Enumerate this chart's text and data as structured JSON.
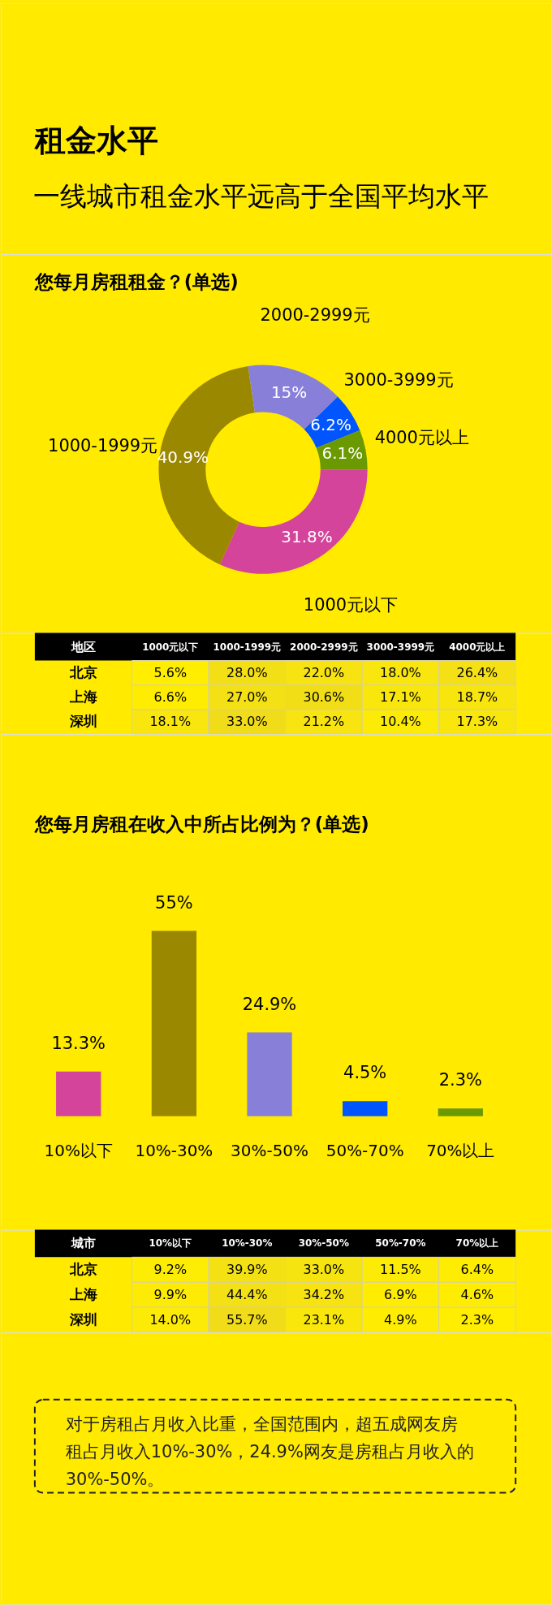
{
  "chart_data": [
    {
      "type": "other",
      "title": "租金水平",
      "subtitle": "一线城市租金水平远高于全国平均水平"
    },
    {
      "type": "donut",
      "title": "您每月房租租金？(单选)",
      "categories": [
        "1000元以下",
        "1000-1999元",
        "2000-2999元",
        "3000-3999元",
        "4000元以上"
      ],
      "values": [
        31.8,
        40.9,
        15,
        6.2,
        6.1
      ],
      "value_labels": [
        "31.8%",
        "40.9%",
        "15%",
        "6.2%",
        "6.1%"
      ],
      "colors": [
        "#d4449a",
        "#9a8800",
        "#8880d8",
        "#0055ff",
        "#6a9a00"
      ]
    },
    {
      "type": "heatmap",
      "ylabel": "地区",
      "categories": [
        "1000元以下",
        "1000-1999元",
        "2000-2999元",
        "3000-3999元",
        "4000元以上"
      ],
      "y_categories": [
        "北京",
        "上海",
        "深圳"
      ],
      "cells": [
        [
          5.6,
          28.0,
          22.0,
          18.0,
          26.4
        ],
        [
          6.6,
          27.0,
          30.6,
          17.1,
          18.7
        ],
        [
          18.1,
          33.0,
          21.2,
          10.4,
          17.3
        ]
      ],
      "cell_labels": [
        [
          "5.6%",
          "28.0%",
          "22.0%",
          "18.0%",
          "26.4%"
        ],
        [
          "6.6%",
          "27.0%",
          "30.6%",
          "17.1%",
          "18.7%"
        ],
        [
          "18.1%",
          "33.0%",
          "21.2%",
          "10.4%",
          "17.3%"
        ]
      ]
    },
    {
      "type": "bar",
      "title": "您每月房租在收入中所占比例为？(单选)",
      "categories": [
        "10%以下",
        "10%-30%",
        "30%-50%",
        "50%-70%",
        "70%以上"
      ],
      "values": [
        13.3,
        55,
        24.9,
        4.5,
        2.3
      ],
      "value_labels": [
        "13.3%",
        "55%",
        "24.9%",
        "4.5%",
        "2.3%"
      ],
      "colors": [
        "#d4449a",
        "#9a8800",
        "#8880d8",
        "#0055ff",
        "#6a9a00"
      ]
    },
    {
      "type": "heatmap",
      "ylabel": "城市",
      "categories": [
        "10%以下",
        "10%-30%",
        "30%-50%",
        "50%-70%",
        "70%以上"
      ],
      "y_categories": [
        "北京",
        "上海",
        "深圳"
      ],
      "cells": [
        [
          9.2,
          39.9,
          33.0,
          11.5,
          6.4
        ],
        [
          9.9,
          44.4,
          34.2,
          6.9,
          4.6
        ],
        [
          14.0,
          55.7,
          23.1,
          4.9,
          2.3
        ]
      ],
      "cell_labels": [
        [
          "9.2%",
          "39.9%",
          "33.0%",
          "11.5%",
          "6.4%"
        ],
        [
          "9.9%",
          "44.4%",
          "34.2%",
          "6.9%",
          "4.6%"
        ],
        [
          "14.0%",
          "55.7%",
          "23.1%",
          "4.9%",
          "2.3%"
        ]
      ]
    },
    {
      "type": "other",
      "annotations": [
        "对于房租占月收入比重，全国范围内，超五成网友房租占月收入10%-30%，24.9%网友是房租占月收入的30%-50%。"
      ]
    }
  ]
}
